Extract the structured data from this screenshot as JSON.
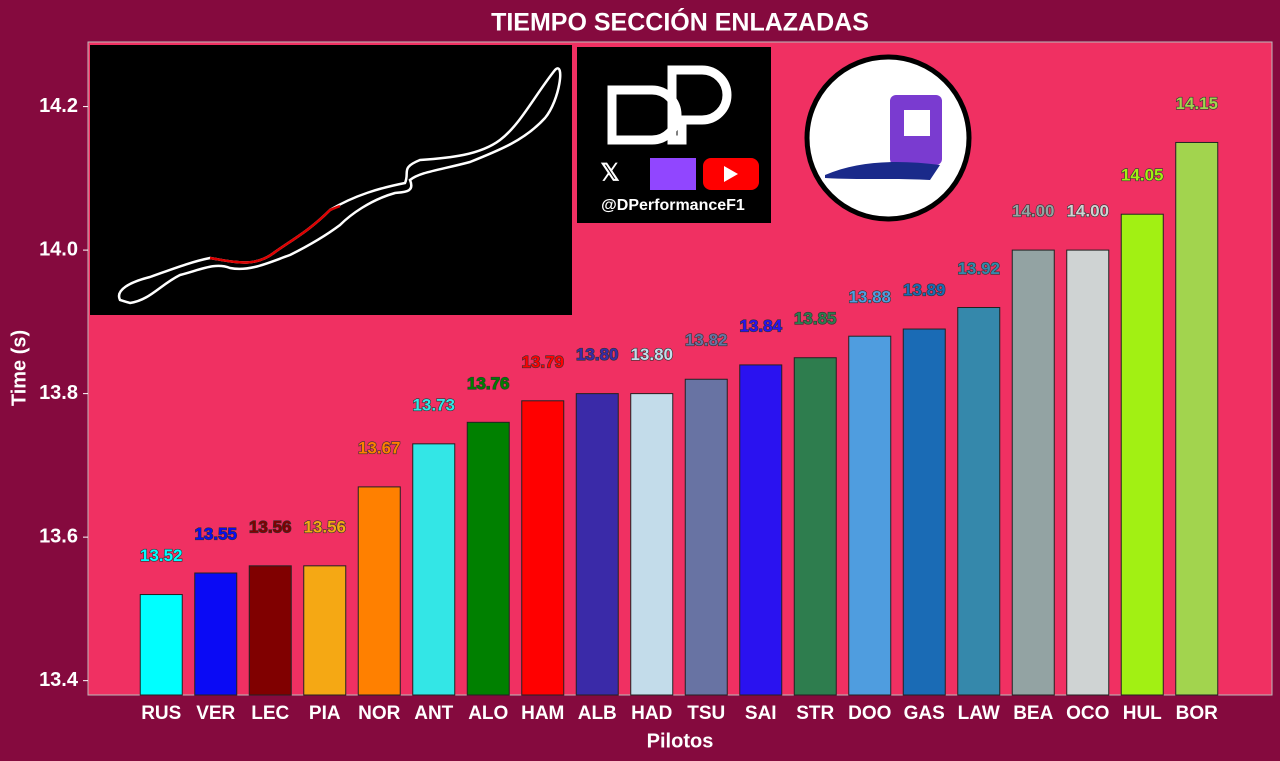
{
  "chart_data": {
    "type": "bar",
    "title": "TIEMPO SECCIÓN ENLAZADAS",
    "x_label": "Pilotos",
    "y_label": "Time (s)",
    "watermark": "@DPerformanceF1",
    "categories": [
      "RUS",
      "VER",
      "LEC",
      "PIA",
      "NOR",
      "ANT",
      "ALO",
      "HAM",
      "ALB",
      "HAD",
      "TSU",
      "SAI",
      "STR",
      "DOO",
      "GAS",
      "LAW",
      "BEA",
      "OCO",
      "HUL",
      "BOR"
    ],
    "values": [
      13.52,
      13.55,
      13.56,
      13.56,
      13.67,
      13.73,
      13.76,
      13.79,
      13.8,
      13.8,
      13.82,
      13.84,
      13.85,
      13.88,
      13.89,
      13.92,
      14.0,
      14.0,
      14.05,
      14.15
    ],
    "value_labels": [
      "13.52",
      "13.55",
      "13.56",
      "13.56",
      "13.67",
      "13.73",
      "13.76",
      "13.79",
      "13.80",
      "13.80",
      "13.82",
      "13.84",
      "13.85",
      "13.88",
      "13.89",
      "13.92",
      "14.00",
      "14.00",
      "14.05",
      "14.15"
    ],
    "colors": [
      "#00ffff",
      "#0a0af5",
      "#800000",
      "#f5a814",
      "#ff8000",
      "#33e6e6",
      "#008000",
      "#ff0000",
      "#3a2aa8",
      "#c3dcea",
      "#6873a3",
      "#2a12f0",
      "#2e7d4e",
      "#4f9ddf",
      "#1a6bb5",
      "#3588ab",
      "#93a3a3",
      "#cfd3d3",
      "#a2f013",
      "#a2d44e"
    ],
    "ylim": [
      13.38,
      14.29
    ],
    "yticks": [
      {
        "value": 13.4,
        "label": "13.4"
      },
      {
        "value": 13.6,
        "label": "13.6"
      },
      {
        "value": 13.8,
        "label": "13.8"
      },
      {
        "value": 14.0,
        "label": "14.0"
      },
      {
        "value": 14.2,
        "label": "14.2"
      }
    ],
    "grid": false
  }
}
